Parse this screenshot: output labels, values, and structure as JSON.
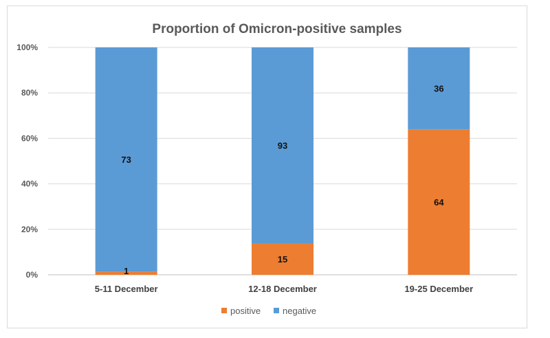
{
  "chart_data": {
    "type": "bar",
    "stacked": true,
    "title": "Proportion of Omicron-positive samples",
    "categories": [
      "5-11 December",
      "12-18 December",
      "19-25 December"
    ],
    "series": [
      {
        "name": "positive",
        "values": [
          1,
          15,
          64
        ],
        "percent": [
          1.4,
          13.9,
          64.0
        ],
        "color": "#ED7D31"
      },
      {
        "name": "negative",
        "values": [
          73,
          93,
          36
        ],
        "percent": [
          98.6,
          86.1,
          36.0
        ],
        "color": "#5B9BD5"
      }
    ],
    "ylim": [
      0,
      100
    ],
    "yticks": [
      "0%",
      "20%",
      "40%",
      "60%",
      "80%",
      "100%"
    ],
    "grid": true,
    "legend": "bottom"
  }
}
